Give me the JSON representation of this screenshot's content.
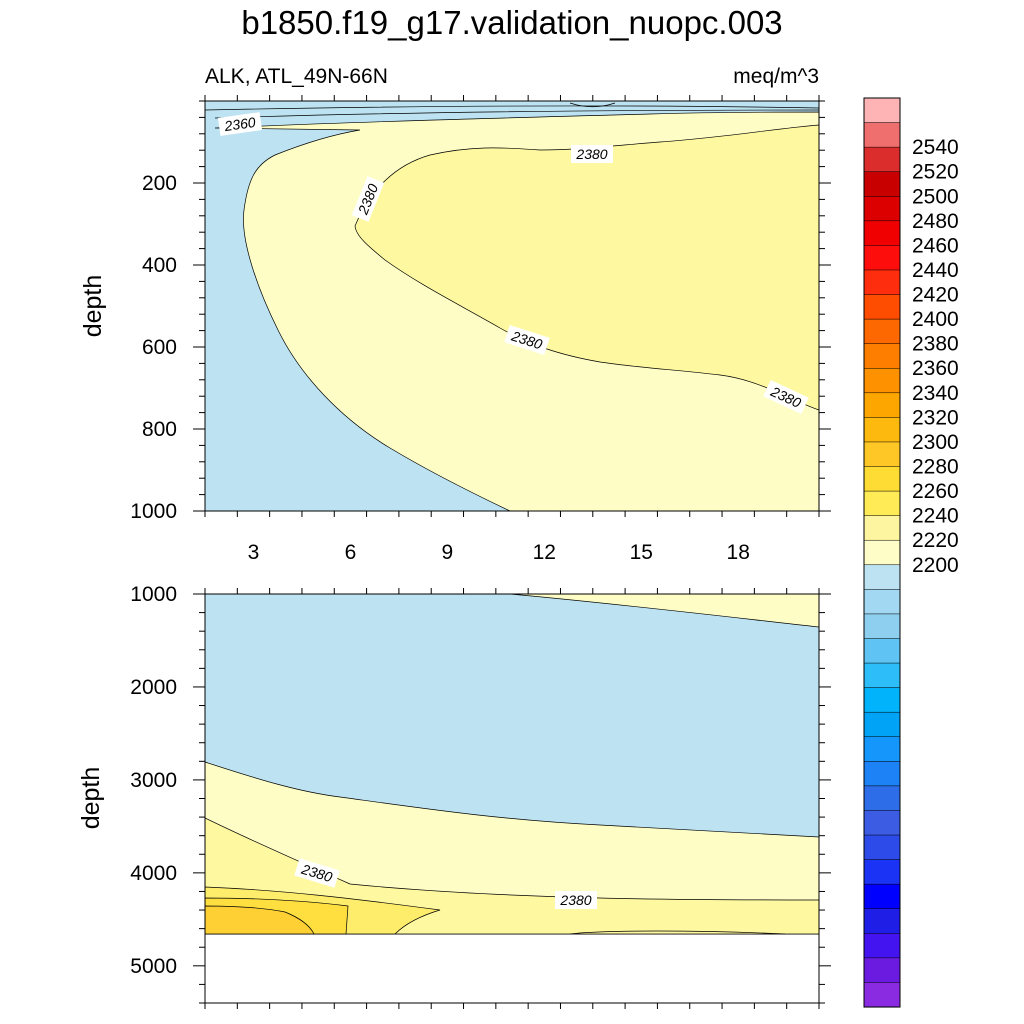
{
  "chart_data": {
    "type": "contour",
    "title": "b1850.f19_g17.validation_nuopc.003",
    "subtitle_left": "ALK, ATL_49N-66N",
    "subtitle_right": "meq/m^3",
    "xlabel": "",
    "ylabel": "depth",
    "x_ticks": [
      3,
      6,
      9,
      12,
      15,
      18
    ],
    "xlim": [
      1.5,
      20.5
    ],
    "panels": [
      {
        "name": "upper",
        "ylim": [
          1000,
          0
        ],
        "y_ticks": [
          200,
          400,
          600,
          800,
          1000
        ],
        "regions": [
          {
            "level": "2360-2370",
            "color": "#bde3f2",
            "area": "base"
          },
          {
            "level": "2370-2380",
            "color": "#fefdc6",
            "area": "interior from x=2.5 outward, depth 50-1000"
          },
          {
            "level": "2380-2390",
            "color": "#fef8a0",
            "area": "core x=6.5-20.5, depth 120-750"
          }
        ],
        "contour_labels": [
          {
            "text": "2360",
            "x": 2.6,
            "depth": 55
          },
          {
            "text": "2380",
            "x": 13.5,
            "depth": 125
          },
          {
            "text": "2380",
            "x": 6.5,
            "depth": 245
          },
          {
            "text": "2380",
            "x": 11.5,
            "depth": 575
          },
          {
            "text": "2380",
            "x": 19.5,
            "depth": 725
          }
        ]
      },
      {
        "name": "lower",
        "ylim": [
          5400,
          1000
        ],
        "y_ticks": [
          1000,
          2000,
          3000,
          4000,
          5000
        ],
        "bottom_depth": 4650,
        "regions": [
          {
            "level": "2360-2370",
            "color": "#bde3f2",
            "area": "base"
          },
          {
            "level": "2370-2380",
            "color": "#fefdc6",
            "area": "below 2800-3600 m and top-right corner"
          },
          {
            "level": "2380-2390",
            "color": "#fef8a0",
            "area": "below ~4100 m"
          },
          {
            "level": "2390-2400",
            "color": "#feec6b",
            "area": "near bottom, west"
          },
          {
            "level": "2400-2410",
            "color": "#fedf3f",
            "area": "bottom-left wedge"
          },
          {
            "level": "2410-2420",
            "color": "#fed033",
            "area": "bottom-left corner"
          }
        ],
        "contour_labels": [
          {
            "text": "2380",
            "x": 5.0,
            "depth": 3930
          },
          {
            "text": "2380",
            "x": 12.5,
            "depth": 4270
          }
        ]
      }
    ],
    "colorbar": {
      "labels": [
        "2540",
        "2520",
        "2500",
        "2480",
        "2460",
        "2440",
        "2420",
        "2400",
        "2380",
        "2360",
        "2340",
        "2320",
        "2300",
        "2280",
        "2260",
        "2240",
        "2220",
        "2200"
      ],
      "colors_top_to_bottom": [
        "#feb4b4",
        "#ef6e6e",
        "#dc2d2d",
        "#c80000",
        "#dc0000",
        "#f00000",
        "#fe0d0d",
        "#fe2d0d",
        "#fe4c00",
        "#fe6800",
        "#fe7f00",
        "#fe9100",
        "#fea600",
        "#feb90f",
        "#fec726",
        "#fedc33",
        "#feeb56",
        "#fef5a0",
        "#fefdc8",
        "#bde3f2",
        "#a3d8f2",
        "#8ecff0",
        "#5fc3f3",
        "#2dbef9",
        "#00b3fb",
        "#00a3f5",
        "#1496fa",
        "#1c82f5",
        "#2d6ee8",
        "#3c5de3",
        "#2c4be8",
        "#1a33f4",
        "#0000fe",
        "#1f1ee7",
        "#4414f0",
        "#6b1ae0",
        "#8a2be2"
      ]
    }
  }
}
